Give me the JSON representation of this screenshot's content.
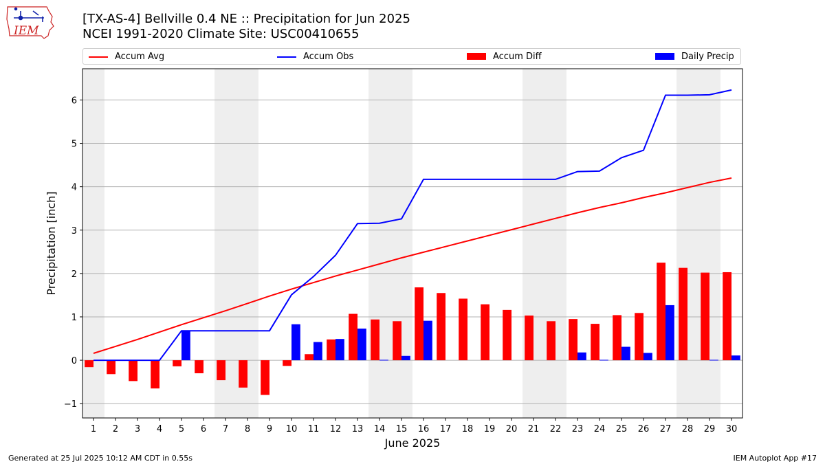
{
  "header": {
    "title_line1": "[TX-AS-4] Bellville 0.4 NE :: Precipitation for Jun 2025",
    "title_line2": "NCEI 1991-2020 Climate Site: USC00410655",
    "logo_text": "IEM"
  },
  "footer": {
    "generated": "Generated at 25 Jul 2025 10:12 AM CDT in 0.55s",
    "app": "IEM Autoplot App #17"
  },
  "chart_data": {
    "type": "bar",
    "xlabel": "June 2025",
    "ylabel": "Precipitation [inch]",
    "ylim": [
      -1.33,
      6.72
    ],
    "yticks": [
      -1,
      0,
      1,
      2,
      3,
      4,
      5,
      6
    ],
    "x": [
      1,
      2,
      3,
      4,
      5,
      6,
      7,
      8,
      9,
      10,
      11,
      12,
      13,
      14,
      15,
      16,
      17,
      18,
      19,
      20,
      21,
      22,
      23,
      24,
      25,
      26,
      27,
      28,
      29,
      30
    ],
    "grid": "horizontal",
    "legend_position": "top",
    "weekend_shading": [
      [
        1,
        1
      ],
      [
        7,
        8
      ],
      [
        14,
        15
      ],
      [
        21,
        22
      ],
      [
        28,
        29
      ]
    ],
    "colors": {
      "accum_avg": "#ff0000",
      "accum_obs": "#0000ff",
      "accum_diff": "#ff0000",
      "daily_precip": "#0000ff",
      "weekend": "#eeeeee"
    },
    "series": [
      {
        "name": "Accum Avg",
        "kind": "line",
        "values": [
          0.16,
          0.32,
          0.48,
          0.65,
          0.82,
          0.98,
          1.14,
          1.31,
          1.48,
          1.64,
          1.79,
          1.94,
          2.08,
          2.22,
          2.36,
          2.49,
          2.62,
          2.75,
          2.88,
          3.01,
          3.14,
          3.27,
          3.4,
          3.52,
          3.63,
          3.75,
          3.86,
          3.98,
          4.1,
          4.2
        ]
      },
      {
        "name": "Accum Obs",
        "kind": "line",
        "values": [
          0,
          0,
          0,
          0,
          0.68,
          0.68,
          0.68,
          0.68,
          0.68,
          1.51,
          1.93,
          2.42,
          3.15,
          3.16,
          3.26,
          4.17,
          4.17,
          4.17,
          4.17,
          4.17,
          4.17,
          4.17,
          4.35,
          4.36,
          4.67,
          4.84,
          6.11,
          6.11,
          6.12,
          6.23
        ]
      },
      {
        "name": "Accum Diff",
        "kind": "bar",
        "values": [
          -0.16,
          -0.32,
          -0.48,
          -0.65,
          -0.14,
          -0.3,
          -0.46,
          -0.63,
          -0.8,
          -0.13,
          0.14,
          0.48,
          1.07,
          0.94,
          0.9,
          1.68,
          1.55,
          1.42,
          1.29,
          1.16,
          1.03,
          0.9,
          0.95,
          0.84,
          1.04,
          1.09,
          2.25,
          2.13,
          2.02,
          2.03
        ]
      },
      {
        "name": "Daily Precip",
        "kind": "bar",
        "values": [
          0,
          0,
          0,
          0,
          0.68,
          0,
          0,
          0,
          0,
          0.83,
          0.42,
          0.49,
          0.73,
          0.01,
          0.1,
          0.91,
          0,
          0,
          0,
          0,
          0,
          0,
          0.18,
          0.01,
          0.31,
          0.17,
          1.27,
          0,
          0.01,
          0.11
        ]
      }
    ]
  }
}
